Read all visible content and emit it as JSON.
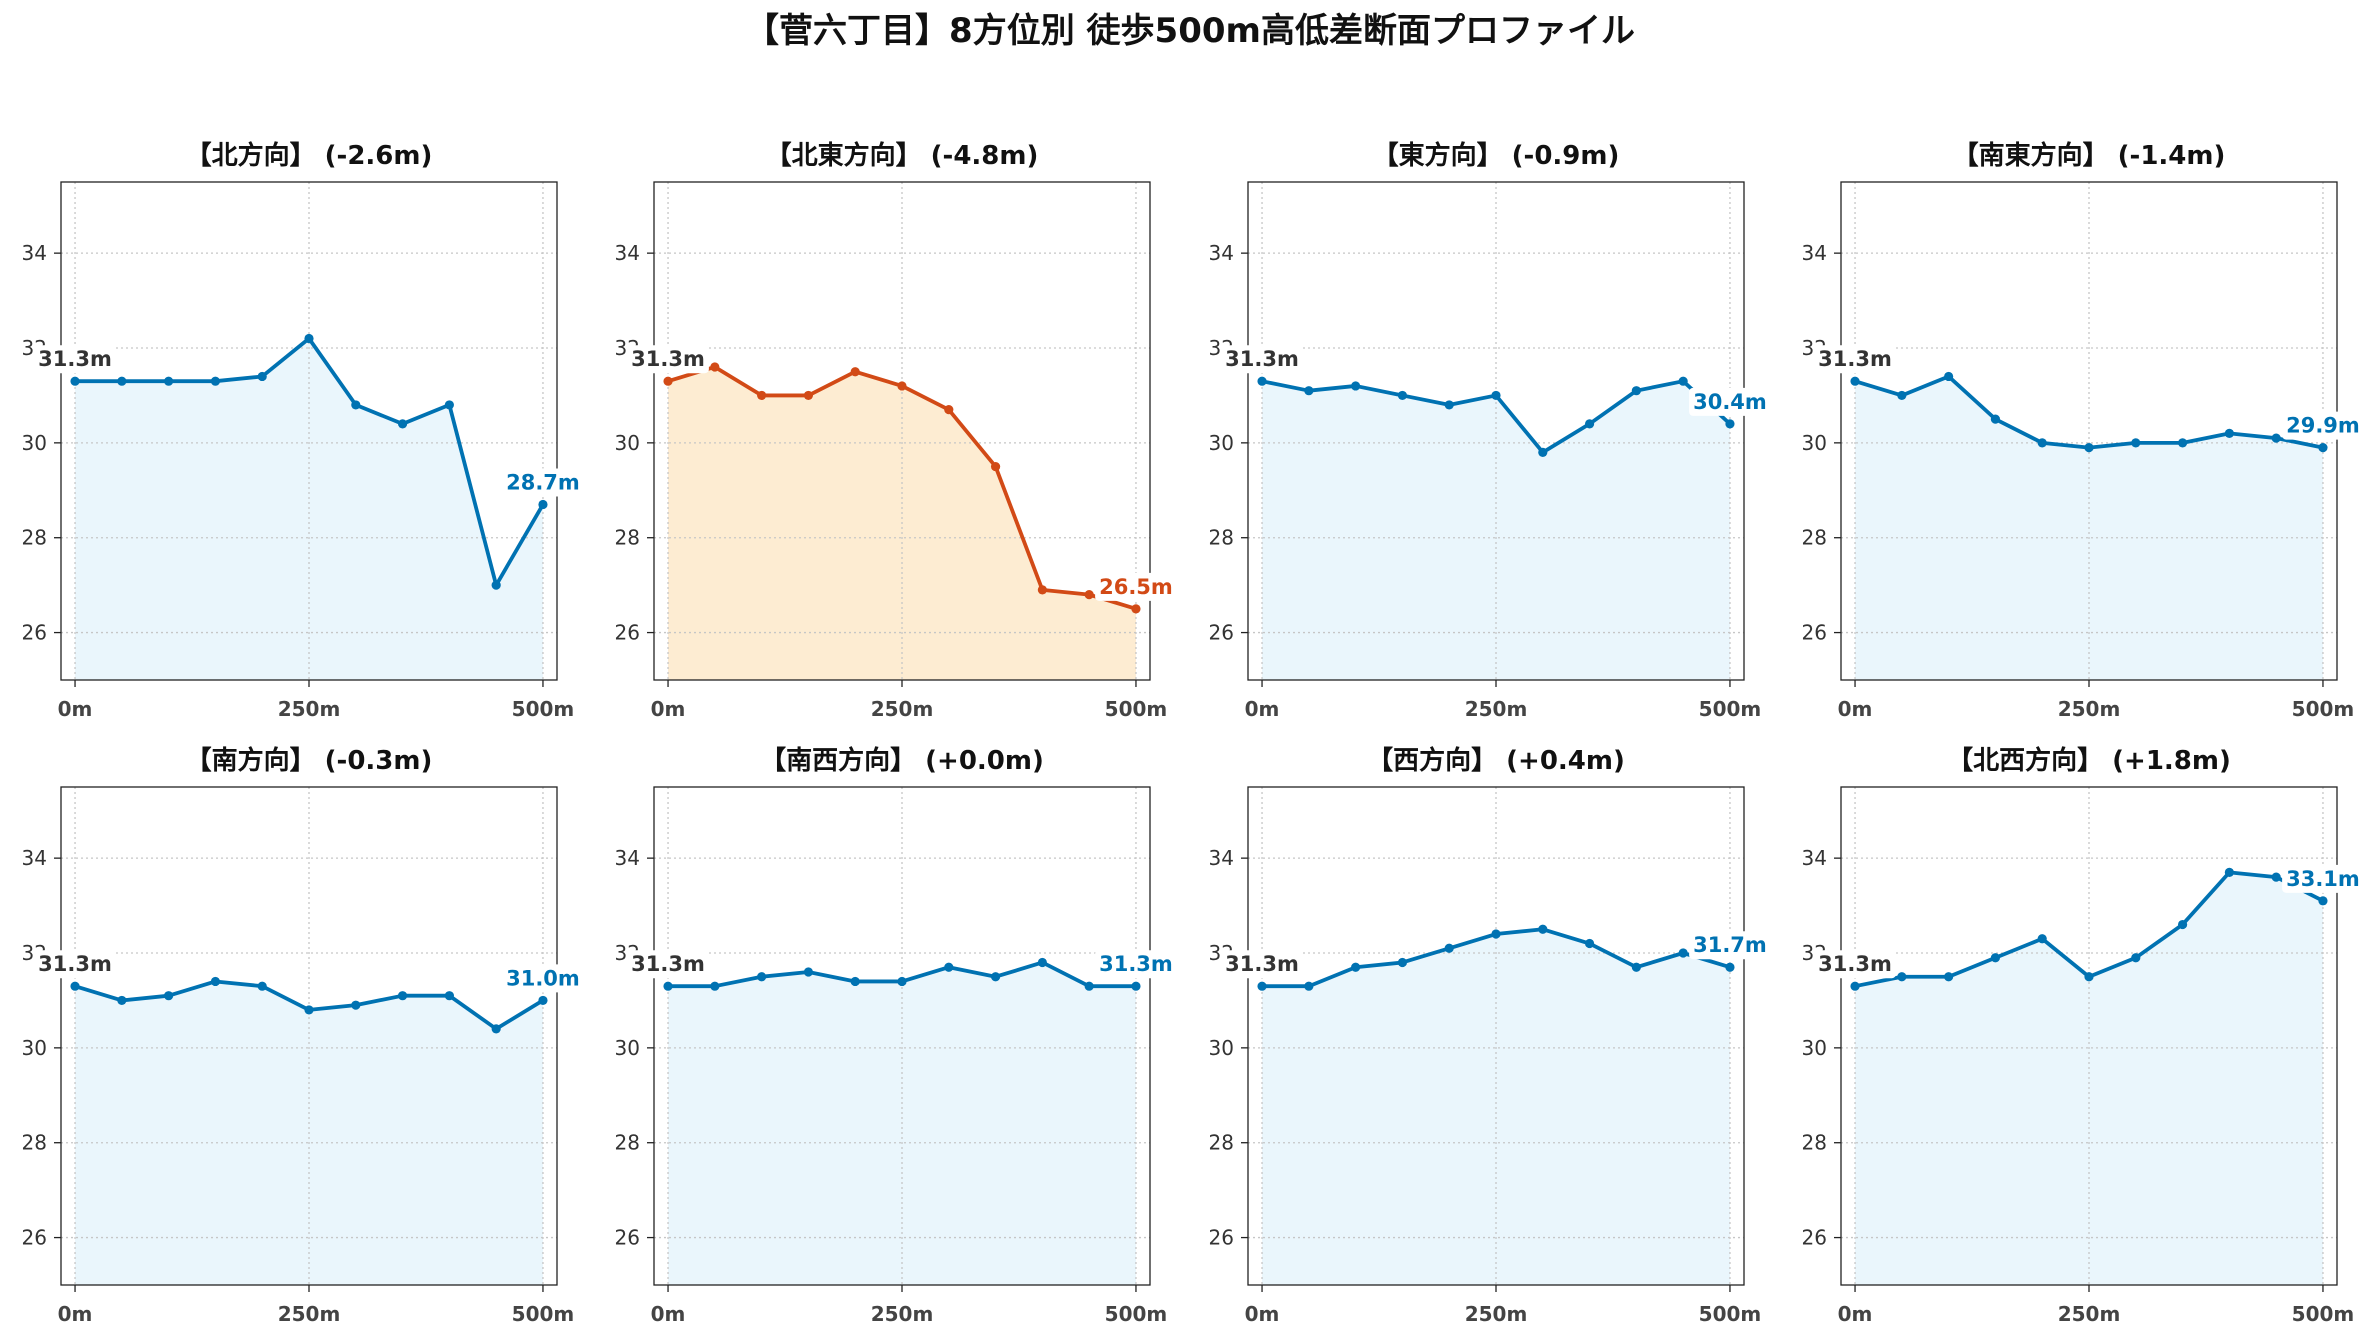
{
  "page": {
    "title": "【菅六丁目】8方位別 徒歩500m高低差断面プロファイル"
  },
  "colors": {
    "start_label": "#333333",
    "grid": "#c6c6c6",
    "axes": "#222222"
  },
  "chart_data": [
    {
      "type": "line",
      "title": "【北方向】 (-2.6m)",
      "x": [
        0,
        50,
        100,
        150,
        200,
        250,
        300,
        350,
        400,
        450,
        500
      ],
      "y": [
        31.3,
        31.3,
        31.3,
        31.3,
        31.4,
        32.2,
        30.8,
        30.4,
        30.8,
        27.0,
        28.7
      ],
      "start_label": "31.3m",
      "end_label": "28.7m",
      "line_color": "#0072B2",
      "fill_color": "#EAF6FC",
      "xlim": [
        -15,
        515
      ],
      "ylim": [
        25.0,
        35.5
      ],
      "x_ticks": [
        0,
        250,
        500
      ],
      "x_tick_labels": [
        "0m",
        "250m",
        "500m"
      ],
      "y_ticks": [
        26,
        28,
        30,
        32,
        34
      ],
      "y_tick_labels": [
        "26",
        "28",
        "30",
        "32",
        "34"
      ],
      "grid": true
    },
    {
      "type": "line",
      "title": "【北東方向】 (-4.8m)",
      "x": [
        0,
        50,
        100,
        150,
        200,
        250,
        300,
        350,
        400,
        450,
        500
      ],
      "y": [
        31.3,
        31.6,
        31.0,
        31.0,
        31.5,
        31.2,
        30.7,
        29.5,
        26.9,
        26.8,
        26.5
      ],
      "start_label": "31.3m",
      "end_label": "26.5m",
      "line_color": "#D24A16",
      "fill_color": "#FDECD2",
      "xlim": [
        -15,
        515
      ],
      "ylim": [
        25.0,
        35.5
      ],
      "x_ticks": [
        0,
        250,
        500
      ],
      "x_tick_labels": [
        "0m",
        "250m",
        "500m"
      ],
      "y_ticks": [
        26,
        28,
        30,
        32,
        34
      ],
      "y_tick_labels": [
        "26",
        "28",
        "30",
        "32",
        "34"
      ],
      "grid": true
    },
    {
      "type": "line",
      "title": "【東方向】 (-0.9m)",
      "x": [
        0,
        50,
        100,
        150,
        200,
        250,
        300,
        350,
        400,
        450,
        500
      ],
      "y": [
        31.3,
        31.1,
        31.2,
        31.0,
        30.8,
        31.0,
        29.8,
        30.4,
        31.1,
        31.3,
        30.4
      ],
      "start_label": "31.3m",
      "end_label": "30.4m",
      "line_color": "#0072B2",
      "fill_color": "#EAF6FC",
      "xlim": [
        -15,
        515
      ],
      "ylim": [
        25.0,
        35.5
      ],
      "x_ticks": [
        0,
        250,
        500
      ],
      "x_tick_labels": [
        "0m",
        "250m",
        "500m"
      ],
      "y_ticks": [
        26,
        28,
        30,
        32,
        34
      ],
      "y_tick_labels": [
        "26",
        "28",
        "30",
        "32",
        "34"
      ],
      "grid": true
    },
    {
      "type": "line",
      "title": "【南東方向】 (-1.4m)",
      "x": [
        0,
        50,
        100,
        150,
        200,
        250,
        300,
        350,
        400,
        450,
        500
      ],
      "y": [
        31.3,
        31.0,
        31.4,
        30.5,
        30.0,
        29.9,
        30.0,
        30.0,
        30.2,
        30.1,
        29.9
      ],
      "start_label": "31.3m",
      "end_label": "29.9m",
      "line_color": "#0072B2",
      "fill_color": "#EAF6FC",
      "xlim": [
        -15,
        515
      ],
      "ylim": [
        25.0,
        35.5
      ],
      "x_ticks": [
        0,
        250,
        500
      ],
      "x_tick_labels": [
        "0m",
        "250m",
        "500m"
      ],
      "y_ticks": [
        26,
        28,
        30,
        32,
        34
      ],
      "y_tick_labels": [
        "26",
        "28",
        "30",
        "32",
        "34"
      ],
      "grid": true
    },
    {
      "type": "line",
      "title": "【南方向】 (-0.3m)",
      "x": [
        0,
        50,
        100,
        150,
        200,
        250,
        300,
        350,
        400,
        450,
        500
      ],
      "y": [
        31.3,
        31.0,
        31.1,
        31.4,
        31.3,
        30.8,
        30.9,
        31.1,
        31.1,
        30.4,
        31.0
      ],
      "start_label": "31.3m",
      "end_label": "31.0m",
      "line_color": "#0072B2",
      "fill_color": "#EAF6FC",
      "xlim": [
        -15,
        515
      ],
      "ylim": [
        25.0,
        35.5
      ],
      "x_ticks": [
        0,
        250,
        500
      ],
      "x_tick_labels": [
        "0m",
        "250m",
        "500m"
      ],
      "y_ticks": [
        26,
        28,
        30,
        32,
        34
      ],
      "y_tick_labels": [
        "26",
        "28",
        "30",
        "32",
        "34"
      ],
      "grid": true
    },
    {
      "type": "line",
      "title": "【南西方向】 (+0.0m)",
      "x": [
        0,
        50,
        100,
        150,
        200,
        250,
        300,
        350,
        400,
        450,
        500
      ],
      "y": [
        31.3,
        31.3,
        31.5,
        31.6,
        31.4,
        31.4,
        31.7,
        31.5,
        31.8,
        31.3,
        31.3
      ],
      "start_label": "31.3m",
      "end_label": "31.3m",
      "line_color": "#0072B2",
      "fill_color": "#EAF6FC",
      "xlim": [
        -15,
        515
      ],
      "ylim": [
        25.0,
        35.5
      ],
      "x_ticks": [
        0,
        250,
        500
      ],
      "x_tick_labels": [
        "0m",
        "250m",
        "500m"
      ],
      "y_ticks": [
        26,
        28,
        30,
        32,
        34
      ],
      "y_tick_labels": [
        "26",
        "28",
        "30",
        "32",
        "34"
      ],
      "grid": true
    },
    {
      "type": "line",
      "title": "【西方向】 (+0.4m)",
      "x": [
        0,
        50,
        100,
        150,
        200,
        250,
        300,
        350,
        400,
        450,
        500
      ],
      "y": [
        31.3,
        31.3,
        31.7,
        31.8,
        32.1,
        32.4,
        32.5,
        32.2,
        31.7,
        32.0,
        31.7
      ],
      "start_label": "31.3m",
      "end_label": "31.7m",
      "line_color": "#0072B2",
      "fill_color": "#EAF6FC",
      "xlim": [
        -15,
        515
      ],
      "ylim": [
        25.0,
        35.5
      ],
      "x_ticks": [
        0,
        250,
        500
      ],
      "x_tick_labels": [
        "0m",
        "250m",
        "500m"
      ],
      "y_ticks": [
        26,
        28,
        30,
        32,
        34
      ],
      "y_tick_labels": [
        "26",
        "28",
        "30",
        "32",
        "34"
      ],
      "grid": true
    },
    {
      "type": "line",
      "title": "【北西方向】 (+1.8m)",
      "x": [
        0,
        50,
        100,
        150,
        200,
        250,
        300,
        350,
        400,
        450,
        500
      ],
      "y": [
        31.3,
        31.5,
        31.5,
        31.9,
        32.3,
        31.5,
        31.9,
        32.6,
        33.7,
        33.6,
        33.1
      ],
      "start_label": "31.3m",
      "end_label": "33.1m",
      "line_color": "#0072B2",
      "fill_color": "#EAF6FC",
      "xlim": [
        -15,
        515
      ],
      "ylim": [
        25.0,
        35.5
      ],
      "x_ticks": [
        0,
        250,
        500
      ],
      "x_tick_labels": [
        "0m",
        "250m",
        "500m"
      ],
      "y_ticks": [
        26,
        28,
        30,
        32,
        34
      ],
      "y_tick_labels": [
        "26",
        "28",
        "30",
        "32",
        "34"
      ],
      "grid": true
    }
  ]
}
